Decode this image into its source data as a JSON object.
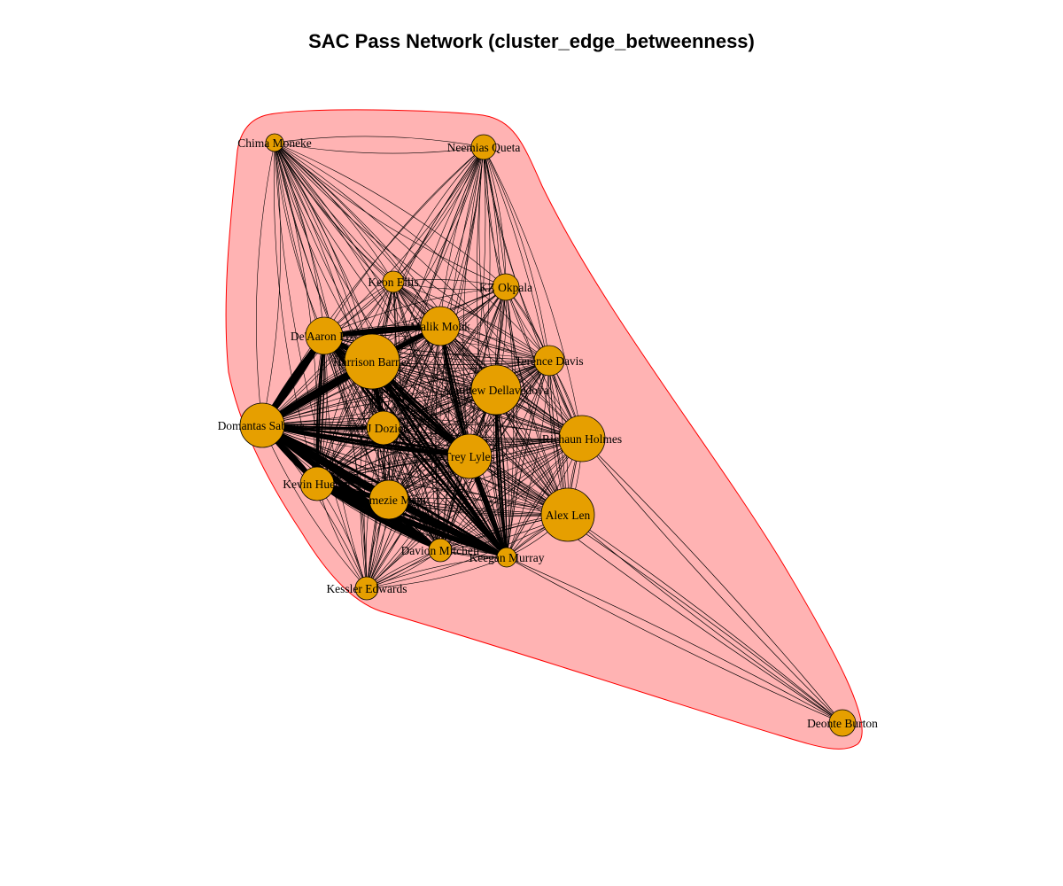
{
  "title": "SAC Pass Network (cluster_edge_betweenness)",
  "colors": {
    "node_fill": "#E69F00",
    "node_stroke": "#000000",
    "cluster_fill": "#FFB3B3",
    "cluster_stroke": "#FF0000",
    "edge": "#000000"
  },
  "nodes": [
    {
      "id": "chima",
      "label": "Chima Moneke"
    },
    {
      "id": "queta",
      "label": "Neemias Queta"
    },
    {
      "id": "ellis",
      "label": "Keon Ellis"
    },
    {
      "id": "okpala",
      "label": "KZ Okpala"
    },
    {
      "id": "monk",
      "label": "Malik Monk"
    },
    {
      "id": "fox",
      "label": "De'Aaron Fox"
    },
    {
      "id": "barnes",
      "label": "Harrison Barnes"
    },
    {
      "id": "davis",
      "label": "Terence Davis"
    },
    {
      "id": "dellavedova",
      "label": "Matthew Dellavedova"
    },
    {
      "id": "sabonis",
      "label": "Domantas Sabonis"
    },
    {
      "id": "dozier",
      "label": "PJ Dozier"
    },
    {
      "id": "holmes",
      "label": "Richaun Holmes"
    },
    {
      "id": "lyles",
      "label": "Trey Lyles"
    },
    {
      "id": "huerter",
      "label": "Kevin Huerter"
    },
    {
      "id": "metu",
      "label": "Chimezie Metu"
    },
    {
      "id": "len",
      "label": "Alex Len"
    },
    {
      "id": "mitchell",
      "label": "Davion Mitchell"
    },
    {
      "id": "murray",
      "label": "Keegan Murray"
    },
    {
      "id": "edwards",
      "label": "Kessler Edwards"
    },
    {
      "id": "burton",
      "label": "Deonte Burton"
    }
  ]
}
